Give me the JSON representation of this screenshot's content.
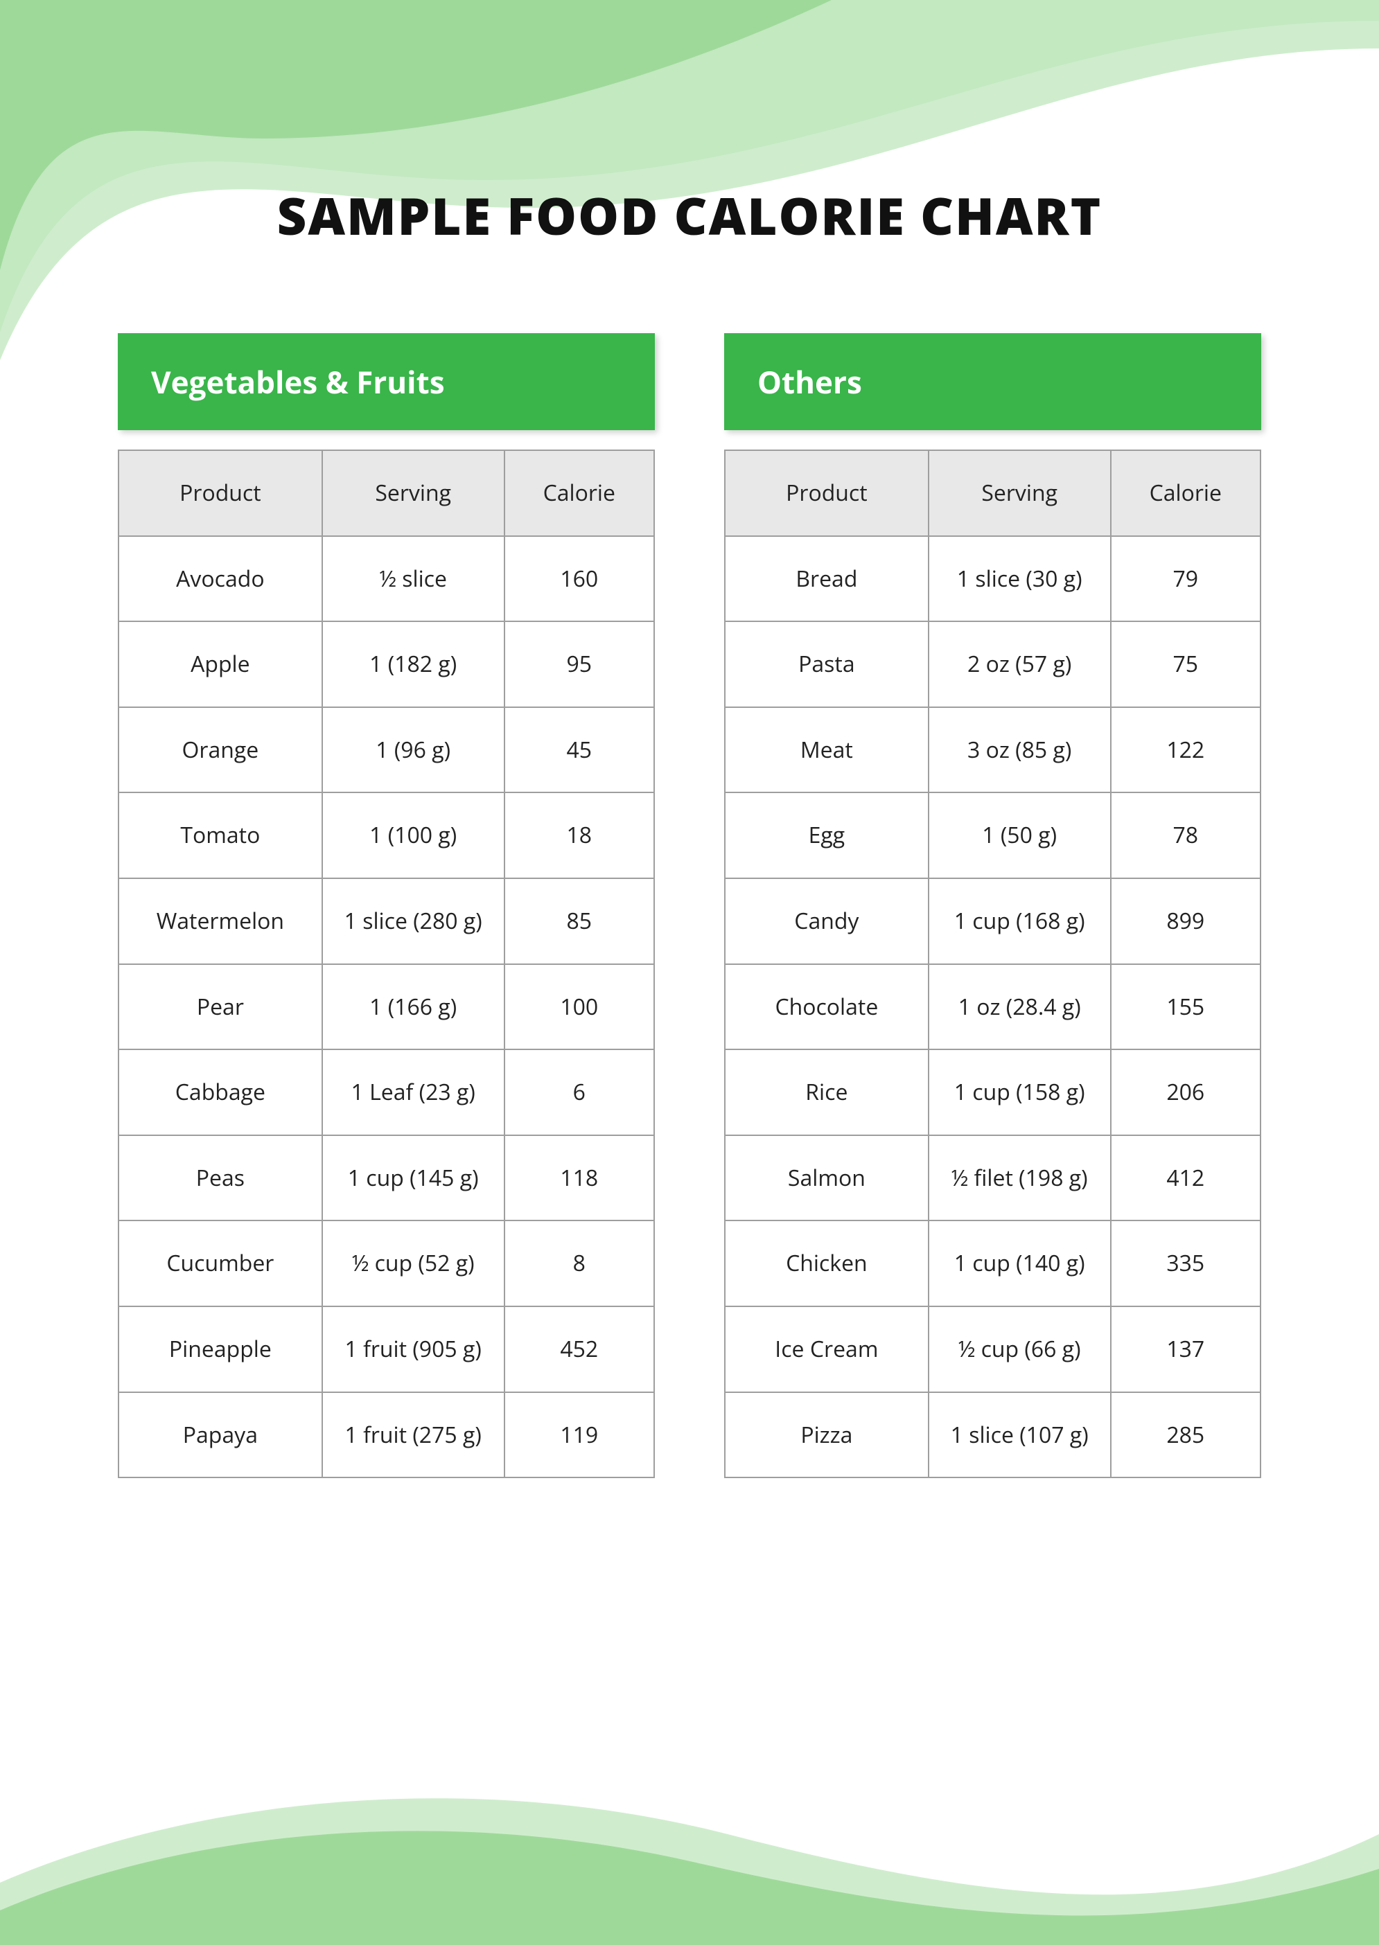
{
  "page": {
    "title": "SAMPLE FOOD CALORIE CHART",
    "title_color": "#111111",
    "title_fontsize": 74,
    "background_color": "#ffffff"
  },
  "decor": {
    "wave_light": "#c7eac4",
    "wave_mid": "#b1e0ad",
    "wave_dark": "#9fd99a"
  },
  "tables": {
    "header_bg": "#39b54a",
    "header_text_color": "#ffffff",
    "header_fontsize": 44,
    "columns_bg": "#e8e8e8",
    "border_color": "#9e9e9e",
    "cell_text_color": "#222222",
    "cell_fontsize": 32,
    "columns": [
      "Product",
      "Serving",
      "Calorie"
    ],
    "left": {
      "title": "Vegetables & Fruits",
      "rows": [
        {
          "product": "Avocado",
          "serving": "½ slice",
          "calorie": "160"
        },
        {
          "product": "Apple",
          "serving": "1 (182 g)",
          "calorie": "95"
        },
        {
          "product": "Orange",
          "serving": "1 (96 g)",
          "calorie": "45"
        },
        {
          "product": "Tomato",
          "serving": "1 (100 g)",
          "calorie": "18"
        },
        {
          "product": "Watermelon",
          "serving": "1 slice (280 g)",
          "calorie": "85"
        },
        {
          "product": "Pear",
          "serving": "1 (166 g)",
          "calorie": "100"
        },
        {
          "product": "Cabbage",
          "serving": "1 Leaf (23 g)",
          "calorie": "6"
        },
        {
          "product": "Peas",
          "serving": "1 cup (145 g)",
          "calorie": "118"
        },
        {
          "product": "Cucumber",
          "serving": "½ cup (52 g)",
          "calorie": "8"
        },
        {
          "product": "Pineapple",
          "serving": "1 fruit (905 g)",
          "calorie": "452"
        },
        {
          "product": "Papaya",
          "serving": "1 fruit (275 g)",
          "calorie": "119"
        }
      ]
    },
    "right": {
      "title": "Others",
      "rows": [
        {
          "product": "Bread",
          "serving": "1 slice (30 g)",
          "calorie": "79"
        },
        {
          "product": "Pasta",
          "serving": "2 oz (57 g)",
          "calorie": "75"
        },
        {
          "product": "Meat",
          "serving": "3 oz (85 g)",
          "calorie": "122"
        },
        {
          "product": "Egg",
          "serving": "1 (50 g)",
          "calorie": "78"
        },
        {
          "product": "Candy",
          "serving": "1 cup (168 g)",
          "calorie": "899"
        },
        {
          "product": "Chocolate",
          "serving": "1 oz (28.4 g)",
          "calorie": "155"
        },
        {
          "product": "Rice",
          "serving": "1 cup (158 g)",
          "calorie": "206"
        },
        {
          "product": "Salmon",
          "serving": "½ filet (198 g)",
          "calorie": "412"
        },
        {
          "product": "Chicken",
          "serving": "1 cup (140 g)",
          "calorie": "335"
        },
        {
          "product": "Ice Cream",
          "serving": "½ cup (66 g)",
          "calorie": "137"
        },
        {
          "product": "Pizza",
          "serving": "1 slice (107 g)",
          "calorie": "285"
        }
      ]
    }
  }
}
